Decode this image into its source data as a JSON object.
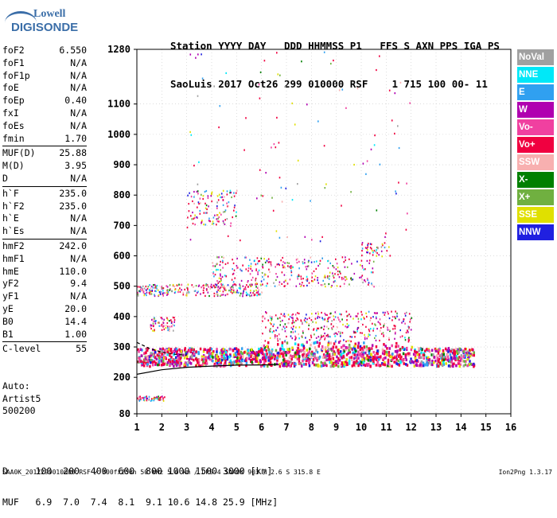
{
  "logo": {
    "line1": "Lowell",
    "line2": "DIGISONDE"
  },
  "header": {
    "line1": "Station YYYY DAY   DDD HHMMSS P1   FFS S AXN PPS IGA PS",
    "line2": "SaoLuis 2017 Oct26 299 010000 RSF    1 715 100 00- 11"
  },
  "params": [
    {
      "k": "foF2",
      "v": "6.550"
    },
    {
      "k": "foF1",
      "v": "N/A"
    },
    {
      "k": "foF1p",
      "v": "N/A"
    },
    {
      "k": "foE",
      "v": "N/A"
    },
    {
      "k": "foEp",
      "v": "0.40"
    },
    {
      "k": "fxI",
      "v": "N/A"
    },
    {
      "k": "foEs",
      "v": "N/A"
    },
    {
      "k": "fmin",
      "v": "1.70"
    },
    {
      "k": "MUF(D)",
      "v": "25.88"
    },
    {
      "k": "M(D)",
      "v": "3.95"
    },
    {
      "k": "D",
      "v": "N/A"
    },
    {
      "k": "h`F",
      "v": "235.0"
    },
    {
      "k": "h`F2",
      "v": "235.0"
    },
    {
      "k": "h`E",
      "v": "N/A"
    },
    {
      "k": "h`Es",
      "v": "N/A"
    },
    {
      "k": "hmF2",
      "v": "242.0"
    },
    {
      "k": "hmF1",
      "v": "N/A"
    },
    {
      "k": "hmE",
      "v": "110.0"
    },
    {
      "k": "yF2",
      "v": "9.4"
    },
    {
      "k": "yF1",
      "v": "N/A"
    },
    {
      "k": "yE",
      "v": "20.0"
    },
    {
      "k": "B0",
      "v": "14.4"
    },
    {
      "k": "B1",
      "v": "1.00"
    },
    {
      "k": "C-level",
      "v": "55"
    }
  ],
  "auto": {
    "line1": "Auto:",
    "line2": "Artist5",
    "line3": "500200"
  },
  "legend": [
    {
      "label": "NoVal",
      "color": "#a0a0a0"
    },
    {
      "label": "NNE",
      "color": "#00e8f8"
    },
    {
      "label": "E",
      "color": "#30a0f0"
    },
    {
      "label": "W",
      "color": "#b000b0"
    },
    {
      "label": "Vo-",
      "color": "#f040a0"
    },
    {
      "label": "Vo+",
      "color": "#f00040"
    },
    {
      "label": "SSW",
      "color": "#f8b0b0"
    },
    {
      "label": "X-",
      "color": "#008000"
    },
    {
      "label": "X+",
      "color": "#70b040"
    },
    {
      "label": "SSE",
      "color": "#e0e000"
    },
    {
      "label": "NNW",
      "color": "#2020e0"
    }
  ],
  "chart_data": {
    "type": "scatter",
    "x_ticks": [
      "1",
      "2",
      "3",
      "4",
      "5",
      "6",
      "7",
      "8",
      "9",
      "10",
      "11",
      "12",
      "13",
      "14",
      "15",
      "16"
    ],
    "y_ticks": [
      "80",
      "200",
      "300",
      "400",
      "500",
      "600",
      "700",
      "800",
      "900",
      "1000",
      "1100",
      "1280"
    ],
    "xlim": [
      1,
      16
    ],
    "ylim": [
      80,
      1280
    ],
    "grid": true,
    "trace_profile": {
      "solid": [
        [
          1,
          210
        ],
        [
          2,
          225
        ],
        [
          3,
          233
        ],
        [
          4,
          237
        ],
        [
          5,
          240
        ],
        [
          6,
          241
        ],
        [
          6.7,
          242
        ]
      ],
      "dashed": [
        [
          1,
          315
        ],
        [
          1.5,
          295
        ],
        [
          2,
          283
        ],
        [
          2.5,
          276
        ],
        [
          3,
          273
        ]
      ]
    },
    "clusters": [
      {
        "fmin": 1.0,
        "fmax": 2.1,
        "hmin": 125,
        "hmax": 140,
        "n": 50
      },
      {
        "fmin": 1.0,
        "fmax": 6.0,
        "hmin": 470,
        "hmax": 510,
        "n": 260
      },
      {
        "fmin": 4.0,
        "fmax": 10.5,
        "hmin": 500,
        "hmax": 600,
        "n": 320
      },
      {
        "fmin": 3.0,
        "fmax": 5.0,
        "hmin": 700,
        "hmax": 820,
        "n": 110
      },
      {
        "fmin": 10.0,
        "fmax": 11.2,
        "hmin": 600,
        "hmax": 650,
        "n": 40
      },
      {
        "fmin": 1.0,
        "fmax": 14.5,
        "hmin": 240,
        "hmax": 300,
        "n": 1300
      },
      {
        "fmin": 6.0,
        "fmax": 12.0,
        "hmin": 300,
        "hmax": 420,
        "n": 420
      },
      {
        "fmin": 1.5,
        "fmax": 2.5,
        "hmin": 355,
        "hmax": 400,
        "n": 60
      },
      {
        "fmin": 3.0,
        "fmax": 12.0,
        "hmin": 650,
        "hmax": 1280,
        "n": 110
      }
    ]
  },
  "footer": {
    "d_line": "D     100  200  400  600  800 1000 1500 3000 [km]",
    "muf_line": "MUF   6.9  7.0  7.4  8.1  9.1 10.6 14.8 25.9 [MHz]",
    "file_line": "SAA0K_2017299010000.RSF / 300fx256h 50 kHz 5.0 km / DPS-4 SAA0K 903 / 2.6 S 315.8 E",
    "version": "Ion2Png 1.3.17"
  }
}
